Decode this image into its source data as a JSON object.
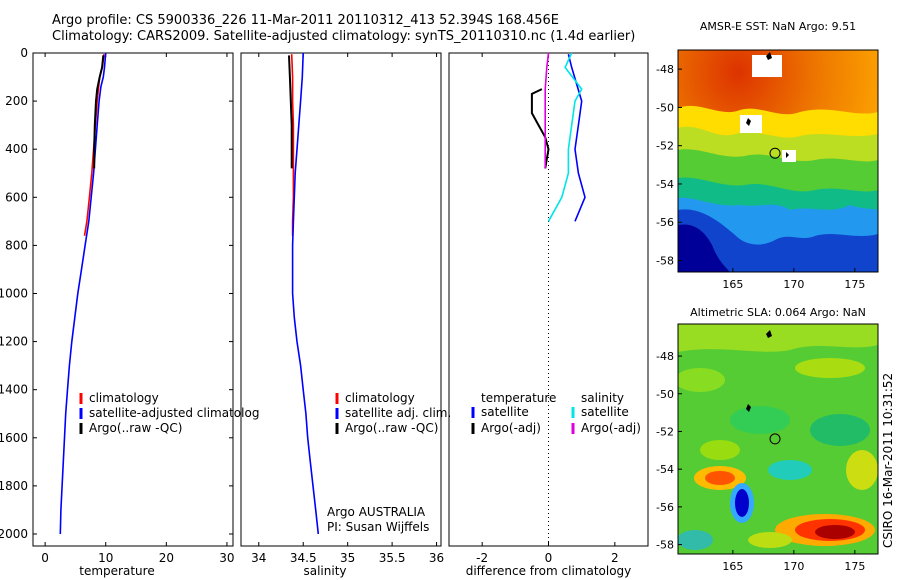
{
  "header": {
    "line1": "Argo profile: CS 5900336_226 11-Mar-2011 20110312_413 52.394S 168.456E",
    "line2": "Climatology: CARS2009. Satellite-adjusted climatology: synTS_20110310.nc (1.4d earlier)"
  },
  "credit": "CSIRO 16-Mar-2011 10:31:52",
  "chart_data": [
    {
      "id": "temperature",
      "type": "line",
      "xlabel": "temperature",
      "ylabel": "",
      "xlim": [
        -2,
        31
      ],
      "ylim": [
        2050,
        0
      ],
      "xticks": [
        "0",
        "10",
        "20",
        "30"
      ],
      "yticks": [
        "0",
        "200",
        "400",
        "600",
        "800",
        "1000",
        "1200",
        "1400",
        "1600",
        "1800",
        "2000"
      ],
      "legend": [
        "climatology",
        "satellite-adjusted climatolog",
        "Argo(..raw -QC)"
      ],
      "series": [
        {
          "name": "climatology",
          "color": "#ff0000",
          "points": [
            [
              9.7,
              5
            ],
            [
              9.5,
              50
            ],
            [
              9.0,
              100
            ],
            [
              8.6,
              200
            ],
            [
              8.3,
              300
            ],
            [
              8.0,
              400
            ],
            [
              7.7,
              500
            ],
            [
              7.3,
              600
            ],
            [
              6.9,
              700
            ],
            [
              6.5,
              760
            ]
          ]
        },
        {
          "name": "satellite-adjusted climatolog",
          "color": "#0000ff",
          "points": [
            [
              10.0,
              0
            ],
            [
              9.9,
              30
            ],
            [
              9.8,
              60
            ],
            [
              9.6,
              100
            ],
            [
              9.2,
              140
            ],
            [
              8.9,
              200
            ],
            [
              8.6,
              300
            ],
            [
              8.3,
              400
            ],
            [
              8.0,
              500
            ],
            [
              7.6,
              600
            ],
            [
              7.2,
              700
            ],
            [
              6.6,
              800
            ],
            [
              6.0,
              900
            ],
            [
              5.4,
              1000
            ],
            [
              4.9,
              1100
            ],
            [
              4.4,
              1200
            ],
            [
              4.0,
              1300
            ],
            [
              3.7,
              1400
            ],
            [
              3.4,
              1500
            ],
            [
              3.2,
              1600
            ],
            [
              3.0,
              1700
            ],
            [
              2.8,
              1800
            ],
            [
              2.6,
              1900
            ],
            [
              2.5,
              2000
            ]
          ]
        },
        {
          "name": "Argo(..raw -QC)",
          "color": "#000000",
          "points": [
            [
              9.6,
              10
            ],
            [
              9.4,
              60
            ],
            [
              9.0,
              100
            ],
            [
              8.6,
              150
            ],
            [
              8.4,
              200
            ],
            [
              8.2,
              300
            ],
            [
              8.1,
              400
            ],
            [
              8.1,
              480
            ]
          ]
        }
      ]
    },
    {
      "id": "salinity",
      "type": "line",
      "xlabel": "salinity",
      "ylabel": "",
      "xlim": [
        33.8,
        36.05
      ],
      "ylim": [
        2050,
        0
      ],
      "xticks": [
        "34",
        "34.5",
        "35",
        "35.5",
        "36"
      ],
      "yticks": [],
      "legend": [
        "climatology",
        "satellite adj. clim.",
        "Argo(..raw -QC)"
      ],
      "annotation": [
        "Argo AUSTRALIA",
        "PI: Susan Wijffels"
      ],
      "series": [
        {
          "name": "climatology",
          "color": "#ff0000",
          "points": [
            [
              34.37,
              5
            ],
            [
              34.38,
              100
            ],
            [
              34.38,
              200
            ],
            [
              34.39,
              300
            ],
            [
              34.39,
              400
            ],
            [
              34.39,
              500
            ],
            [
              34.39,
              600
            ],
            [
              34.38,
              700
            ],
            [
              34.38,
              760
            ]
          ]
        },
        {
          "name": "satellite adj. clim.",
          "color": "#0000ff",
          "points": [
            [
              34.5,
              0
            ],
            [
              34.49,
              100
            ],
            [
              34.47,
              200
            ],
            [
              34.45,
              300
            ],
            [
              34.43,
              400
            ],
            [
              34.41,
              500
            ],
            [
              34.4,
              600
            ],
            [
              34.39,
              700
            ],
            [
              34.38,
              800
            ],
            [
              34.38,
              900
            ],
            [
              34.38,
              1000
            ],
            [
              34.4,
              1100
            ],
            [
              34.43,
              1200
            ],
            [
              34.47,
              1300
            ],
            [
              34.5,
              1400
            ],
            [
              34.53,
              1500
            ],
            [
              34.55,
              1600
            ],
            [
              34.58,
              1700
            ],
            [
              34.61,
              1800
            ],
            [
              34.64,
              1900
            ],
            [
              34.67,
              2000
            ]
          ]
        },
        {
          "name": "Argo(..raw -QC)",
          "color": "#000000",
          "points": [
            [
              34.34,
              10
            ],
            [
              34.35,
              100
            ],
            [
              34.36,
              200
            ],
            [
              34.37,
              300
            ],
            [
              34.37,
              400
            ],
            [
              34.37,
              480
            ]
          ]
        }
      ]
    },
    {
      "id": "difference",
      "type": "line",
      "xlabel": "difference from climatology",
      "ylabel": "",
      "xlim": [
        -3,
        3
      ],
      "ylim": [
        2050,
        0
      ],
      "xticks": [
        "-2",
        "0",
        "2"
      ],
      "yticks": [],
      "legend_headers": [
        "temperature",
        "salinity"
      ],
      "legend": [
        "satellite",
        "Argo(-adj)",
        "satellite",
        "Argo(-adj)"
      ],
      "series": [
        {
          "name": "satellite",
          "group": "temperature",
          "color": "#0000ff",
          "points": [
            [
              0.6,
              5
            ],
            [
              0.7,
              60
            ],
            [
              1.0,
              200
            ],
            [
              0.9,
              300
            ],
            [
              0.8,
              400
            ],
            [
              0.9,
              500
            ],
            [
              1.1,
              600
            ],
            [
              0.8,
              700
            ]
          ]
        },
        {
          "name": "Argo(-adj)",
          "group": "temperature",
          "color": "#000000",
          "points": [
            [
              -0.2,
              150
            ],
            [
              -0.5,
              170
            ],
            [
              -0.5,
              250
            ],
            [
              -0.3,
              300
            ],
            [
              -0.1,
              350
            ],
            [
              0.0,
              400
            ],
            [
              -0.1,
              480
            ]
          ]
        },
        {
          "name": "satellite",
          "group": "salinity",
          "color": "#00e5e5",
          "points": [
            [
              0.7,
              0
            ],
            [
              0.5,
              60
            ],
            [
              1.0,
              150
            ],
            [
              0.8,
              200
            ],
            [
              0.7,
              300
            ],
            [
              0.6,
              400
            ],
            [
              0.6,
              500
            ],
            [
              0.4,
              600
            ],
            [
              0.0,
              700
            ]
          ]
        },
        {
          "name": "Argo(-adj)",
          "group": "salinity",
          "color": "#dd00dd",
          "points": [
            [
              0.0,
              0
            ],
            [
              -0.05,
              60
            ],
            [
              -0.1,
              150
            ],
            [
              -0.1,
              250
            ],
            [
              -0.1,
              350
            ],
            [
              -0.1,
              420
            ],
            [
              -0.1,
              480
            ]
          ]
        }
      ]
    },
    {
      "id": "map-sst",
      "type": "heatmap",
      "title": "AMSR-E SST: NaN Argo: 9.51",
      "xticks": [
        "165",
        "170",
        "175"
      ],
      "yticks": [
        "-48",
        "-50",
        "-52",
        "-54",
        "-56",
        "-58"
      ],
      "marker": {
        "lon": 168.456,
        "lat": -52.394
      }
    },
    {
      "id": "map-sla",
      "type": "heatmap",
      "title": "Altimetric SLA: 0.064 Argo: NaN",
      "xticks": [
        "165",
        "170",
        "175"
      ],
      "yticks": [
        "-48",
        "-50",
        "-52",
        "-54",
        "-56",
        "-58"
      ],
      "marker": {
        "lon": 168.456,
        "lat": -52.394
      }
    }
  ]
}
